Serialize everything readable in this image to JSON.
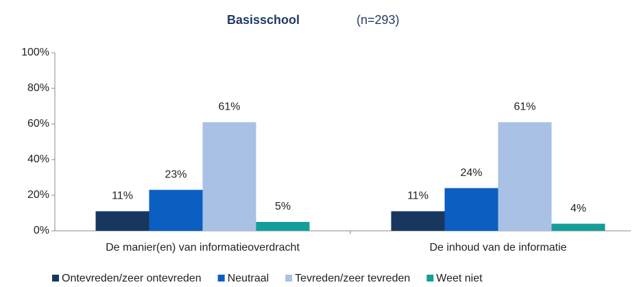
{
  "chart_data": {
    "type": "bar",
    "title": "Basisschool",
    "subtitle": "(n=293)",
    "categories": [
      "De manier(en) van informatieoverdracht",
      "De inhoud van de informatie"
    ],
    "series": [
      {
        "name": "Ontevreden/zeer ontevreden",
        "color": "#17375e",
        "values": [
          11,
          11
        ],
        "value_labels": [
          "11%",
          "11%"
        ]
      },
      {
        "name": "Neutraal",
        "color": "#0b5fc1",
        "values": [
          23,
          24
        ],
        "value_labels": [
          "23%",
          "24%"
        ]
      },
      {
        "name": "Tevreden/zeer tevreden",
        "color": "#a8c1e4",
        "values": [
          61,
          61
        ],
        "value_labels": [
          "61%",
          "61%"
        ]
      },
      {
        "name": "Weet niet",
        "color": "#159e99",
        "values": [
          5,
          4
        ],
        "value_labels": [
          "5%",
          "4%"
        ]
      }
    ],
    "ylim": [
      0,
      100
    ],
    "yticks": [
      {
        "value": 0,
        "label": "0%"
      },
      {
        "value": 20,
        "label": "20%"
      },
      {
        "value": 40,
        "label": "40%"
      },
      {
        "value": 60,
        "label": "60%"
      },
      {
        "value": 80,
        "label": "80%"
      },
      {
        "value": 100,
        "label": "100%"
      }
    ],
    "grid": false
  }
}
